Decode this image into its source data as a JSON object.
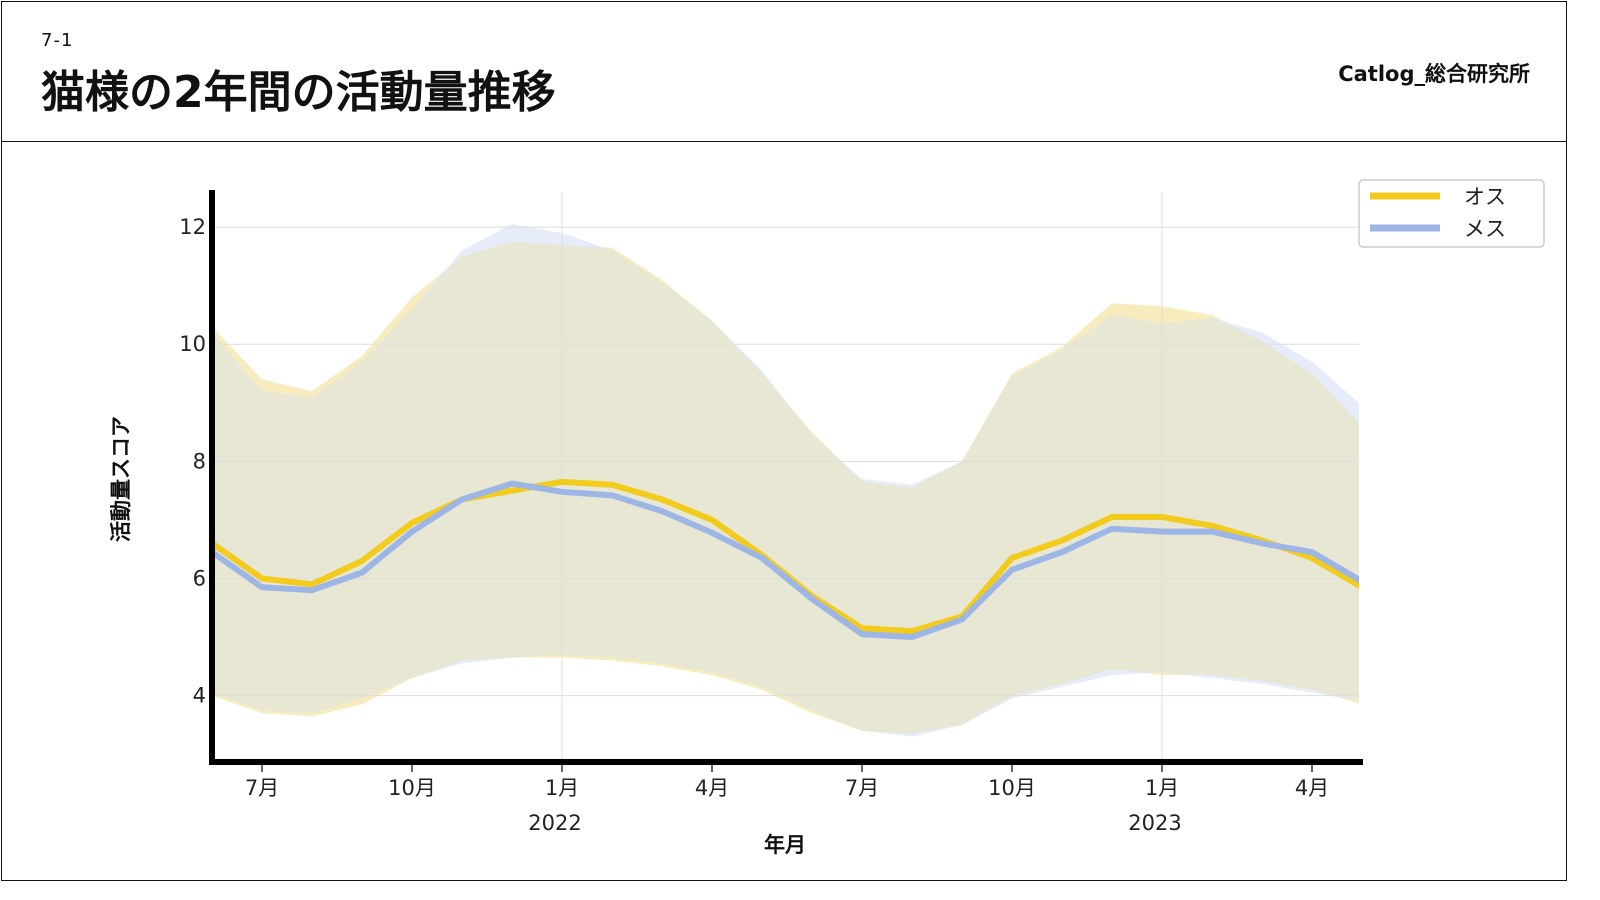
{
  "header": {
    "section_number": "7-1",
    "title": "猫様の2年間の活動量推移",
    "brand": "Catlog_総合研究所"
  },
  "colors": {
    "male": "#f2cb1d",
    "female": "#9db6e6",
    "male_band": "#f5e5a8",
    "female_band": "#dde6f7",
    "overlap_band": "#e7e7d4",
    "axis": "#000000",
    "grid": "#dddddd"
  },
  "chart_data": {
    "type": "line",
    "title": "",
    "xlabel": "年月",
    "ylabel": "活動量スコア",
    "x": [
      "2021-06",
      "2021-07",
      "2021-08",
      "2021-09",
      "2021-10",
      "2021-11",
      "2021-12",
      "2022-01",
      "2022-02",
      "2022-03",
      "2022-04",
      "2022-05",
      "2022-06",
      "2022-07",
      "2022-08",
      "2022-09",
      "2022-10",
      "2022-11",
      "2022-12",
      "2023-01",
      "2023-02",
      "2023-03",
      "2023-04",
      "2023-05"
    ],
    "x_tick_labels": [
      {
        "x": "2021-07",
        "label": "7月",
        "year": ""
      },
      {
        "x": "2021-10",
        "label": "10月",
        "year": ""
      },
      {
        "x": "2022-01",
        "label": "1月",
        "year": "2022"
      },
      {
        "x": "2022-04",
        "label": "4月",
        "year": ""
      },
      {
        "x": "2022-07",
        "label": "7月",
        "year": ""
      },
      {
        "x": "2022-10",
        "label": "10月",
        "year": ""
      },
      {
        "x": "2023-01",
        "label": "1月",
        "year": "2023"
      },
      {
        "x": "2023-04",
        "label": "4月",
        "year": ""
      }
    ],
    "y_ticks": [
      4,
      6,
      8,
      10,
      12
    ],
    "ylim": [
      2.9,
      12.6
    ],
    "grid": true,
    "legend_position": "top-right",
    "series": [
      {
        "name": "オス",
        "color_key": "male",
        "values": [
          6.6,
          6.0,
          5.9,
          6.3,
          6.95,
          7.35,
          7.5,
          7.65,
          7.6,
          7.35,
          7.0,
          6.4,
          5.7,
          5.15,
          5.1,
          5.35,
          6.35,
          6.65,
          7.05,
          7.05,
          6.9,
          6.65,
          6.35,
          5.85
        ],
        "upper": [
          10.3,
          9.4,
          9.2,
          9.8,
          10.8,
          11.5,
          11.75,
          11.7,
          11.65,
          11.1,
          10.4,
          9.5,
          8.5,
          7.65,
          7.55,
          8.0,
          9.5,
          9.95,
          10.7,
          10.65,
          10.5,
          10.05,
          9.5,
          8.6
        ],
        "lower": [
          4.0,
          3.7,
          3.65,
          3.85,
          4.3,
          4.6,
          4.65,
          4.65,
          4.6,
          4.5,
          4.35,
          4.1,
          3.7,
          3.4,
          3.35,
          3.5,
          4.0,
          4.2,
          4.45,
          4.35,
          4.35,
          4.25,
          4.1,
          3.85
        ]
      },
      {
        "name": "メス",
        "color_key": "female",
        "values": [
          6.45,
          5.85,
          5.8,
          6.1,
          6.8,
          7.35,
          7.62,
          7.48,
          7.42,
          7.15,
          6.78,
          6.35,
          5.65,
          5.05,
          5.0,
          5.3,
          6.15,
          6.45,
          6.85,
          6.8,
          6.8,
          6.6,
          6.45,
          5.95
        ],
        "upper": [
          10.2,
          9.2,
          9.1,
          9.7,
          10.6,
          11.6,
          12.05,
          11.9,
          11.6,
          11.05,
          10.4,
          9.55,
          8.45,
          7.7,
          7.6,
          8.0,
          9.45,
          9.9,
          10.5,
          10.35,
          10.45,
          10.2,
          9.7,
          8.95
        ],
        "lower": [
          4.05,
          3.75,
          3.7,
          3.95,
          4.3,
          4.55,
          4.65,
          4.7,
          4.65,
          4.55,
          4.4,
          4.15,
          3.75,
          3.4,
          3.3,
          3.5,
          3.95,
          4.15,
          4.35,
          4.4,
          4.3,
          4.2,
          4.05,
          3.9
        ]
      }
    ]
  }
}
